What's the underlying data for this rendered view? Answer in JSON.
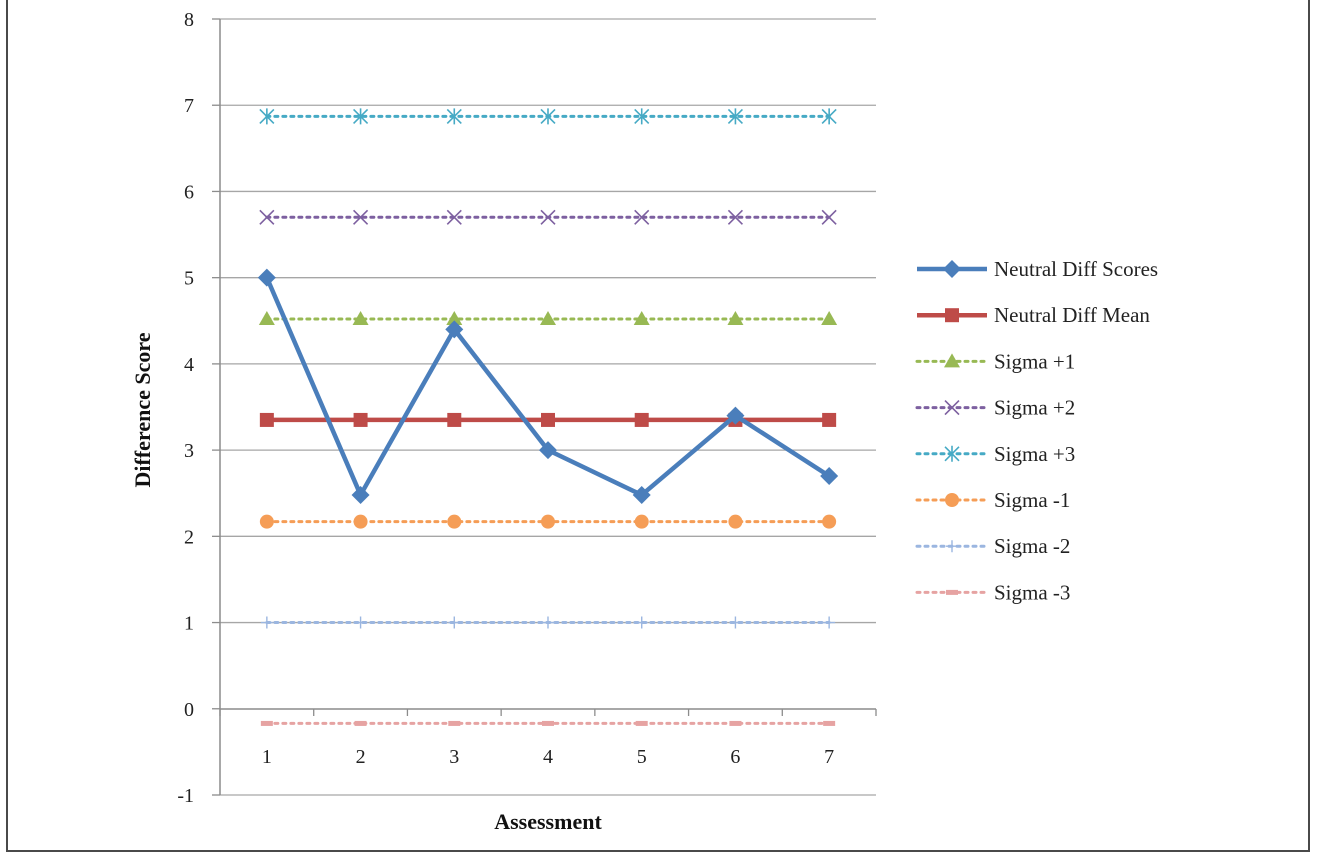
{
  "chart_data": {
    "type": "line",
    "title": "",
    "xlabel": "Assessment",
    "ylabel": "Difference Score",
    "categories": [
      "1",
      "2",
      "3",
      "4",
      "5",
      "6",
      "7"
    ],
    "y_ticks": [
      "-1",
      "0",
      "1",
      "2",
      "3",
      "4",
      "5",
      "6",
      "7",
      "8"
    ],
    "ylim": [
      -1,
      8
    ],
    "grid": "horizontal",
    "legend_position": "right",
    "series": [
      {
        "name": "Neutral Diff Scores",
        "color": "#4a7ebb",
        "style": "solid",
        "marker": "diamond",
        "values": [
          5.0,
          2.48,
          4.4,
          3.0,
          2.48,
          3.4,
          2.7
        ]
      },
      {
        "name": "Neutral Diff Mean",
        "color": "#be4b48",
        "style": "solid",
        "marker": "square",
        "values": [
          3.35,
          3.35,
          3.35,
          3.35,
          3.35,
          3.35,
          3.35
        ]
      },
      {
        "name": "Sigma +1",
        "color": "#98b954",
        "style": "dotted",
        "marker": "triangle",
        "values": [
          4.52,
          4.52,
          4.52,
          4.52,
          4.52,
          4.52,
          4.52
        ]
      },
      {
        "name": "Sigma +2",
        "color": "#7d60a0",
        "style": "dotted",
        "marker": "x",
        "values": [
          5.7,
          5.7,
          5.7,
          5.7,
          5.7,
          5.7,
          5.7
        ]
      },
      {
        "name": "Sigma +3",
        "color": "#46aac5",
        "style": "dotted",
        "marker": "star",
        "values": [
          6.87,
          6.87,
          6.87,
          6.87,
          6.87,
          6.87,
          6.87
        ]
      },
      {
        "name": "Sigma -1",
        "color": "#f59d56",
        "style": "dotted",
        "marker": "circle",
        "values": [
          2.17,
          2.17,
          2.17,
          2.17,
          2.17,
          2.17,
          2.17
        ]
      },
      {
        "name": "Sigma -2",
        "color": "#9bb6e0",
        "style": "dotted",
        "marker": "plus",
        "values": [
          1.0,
          1.0,
          1.0,
          1.0,
          1.0,
          1.0,
          1.0
        ]
      },
      {
        "name": "Sigma -3",
        "color": "#e6a3a2",
        "style": "dotted",
        "marker": "dash",
        "values": [
          -0.17,
          -0.17,
          -0.17,
          -0.17,
          -0.17,
          -0.17,
          -0.17
        ]
      }
    ]
  }
}
